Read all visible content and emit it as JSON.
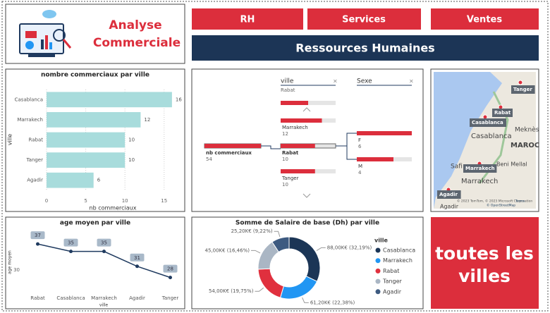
{
  "header": {
    "title_line1": "Analyse",
    "title_line2": "Commerciale"
  },
  "nav": {
    "buttons": [
      "RH",
      "Services",
      "Ventes"
    ],
    "banner": "Ressources Humaines"
  },
  "chart_data": [
    {
      "type": "hbar",
      "title": "nombre commerciaux par ville",
      "x_label": "nb commerciaux",
      "y_label": "ville",
      "categories": [
        "Casablanca",
        "Marrakech",
        "Rabat",
        "Tanger",
        "Agadir"
      ],
      "values": [
        16,
        12,
        10,
        10,
        6
      ],
      "color": "#a8dcdc",
      "xlim": [
        0,
        17
      ],
      "xticks": [
        0,
        5,
        10,
        15
      ],
      "grid": true
    },
    {
      "type": "line",
      "title": "age moyen par ville",
      "x_label": "ville",
      "y_label": "age moyen",
      "categories": [
        "Rabat",
        "Casablanca",
        "Marrakech",
        "Agadir",
        "Tanger"
      ],
      "values": [
        37,
        35,
        35,
        31,
        28
      ],
      "color": "#1f3a5f",
      "ylim": [
        23,
        41
      ],
      "yticks": [
        30
      ]
    },
    {
      "type": "donut",
      "title": "Somme de Salaire de base (Dh) par ville",
      "legend_title": "ville",
      "series": [
        {
          "name": "Casablanca",
          "color": "#1b3556",
          "values": [
            88
          ]
        },
        {
          "name": "Marrakech",
          "color": "#2196f3",
          "values": [
            61.2
          ]
        },
        {
          "name": "Rabat",
          "color": "#e0303e",
          "values": [
            54
          ]
        },
        {
          "name": "Tanger",
          "color": "#aab6c4",
          "values": [
            45
          ]
        },
        {
          "name": "Agadir",
          "color": "#3d5a80",
          "values": [
            25.2
          ]
        }
      ],
      "value_labels": [
        "88,00K€ (32,19%)",
        "61,20K€ (22,38%)",
        "54,00K€ (19,75%)",
        "45,00K€ (16,46%)",
        "25,20K€ (9,22%)"
      ]
    }
  ],
  "decomposition_tree": {
    "filters": [
      {
        "field": "ville",
        "selected": "Rabat"
      },
      {
        "field": "Sexe"
      }
    ],
    "root": {
      "label": "nb commerciaux",
      "value": 54
    },
    "level1": [
      {
        "label": "Marrakech",
        "value": 12
      },
      {
        "label": "Rabat",
        "value": 10
      },
      {
        "label": "Tanger",
        "value": 10
      }
    ],
    "level2": [
      {
        "label": "F",
        "value": 6
      },
      {
        "label": "M",
        "value": 4
      }
    ]
  },
  "map": {
    "cities": [
      "Tanger",
      "Rabat",
      "Casablanca",
      "Marrakech",
      "Agadir"
    ],
    "places": [
      "Casablanca",
      "Meknès",
      "MAROC",
      "Safi",
      "Beni Mellal",
      "Marrakech",
      "Agadir"
    ],
    "attribution": "© 2023 TomTom, © 2023 Microsoft Corporation",
    "terms": "Terms",
    "osm": "© OpenStreetMap"
  },
  "card": {
    "line1": "toutes les",
    "line2": "villes"
  }
}
